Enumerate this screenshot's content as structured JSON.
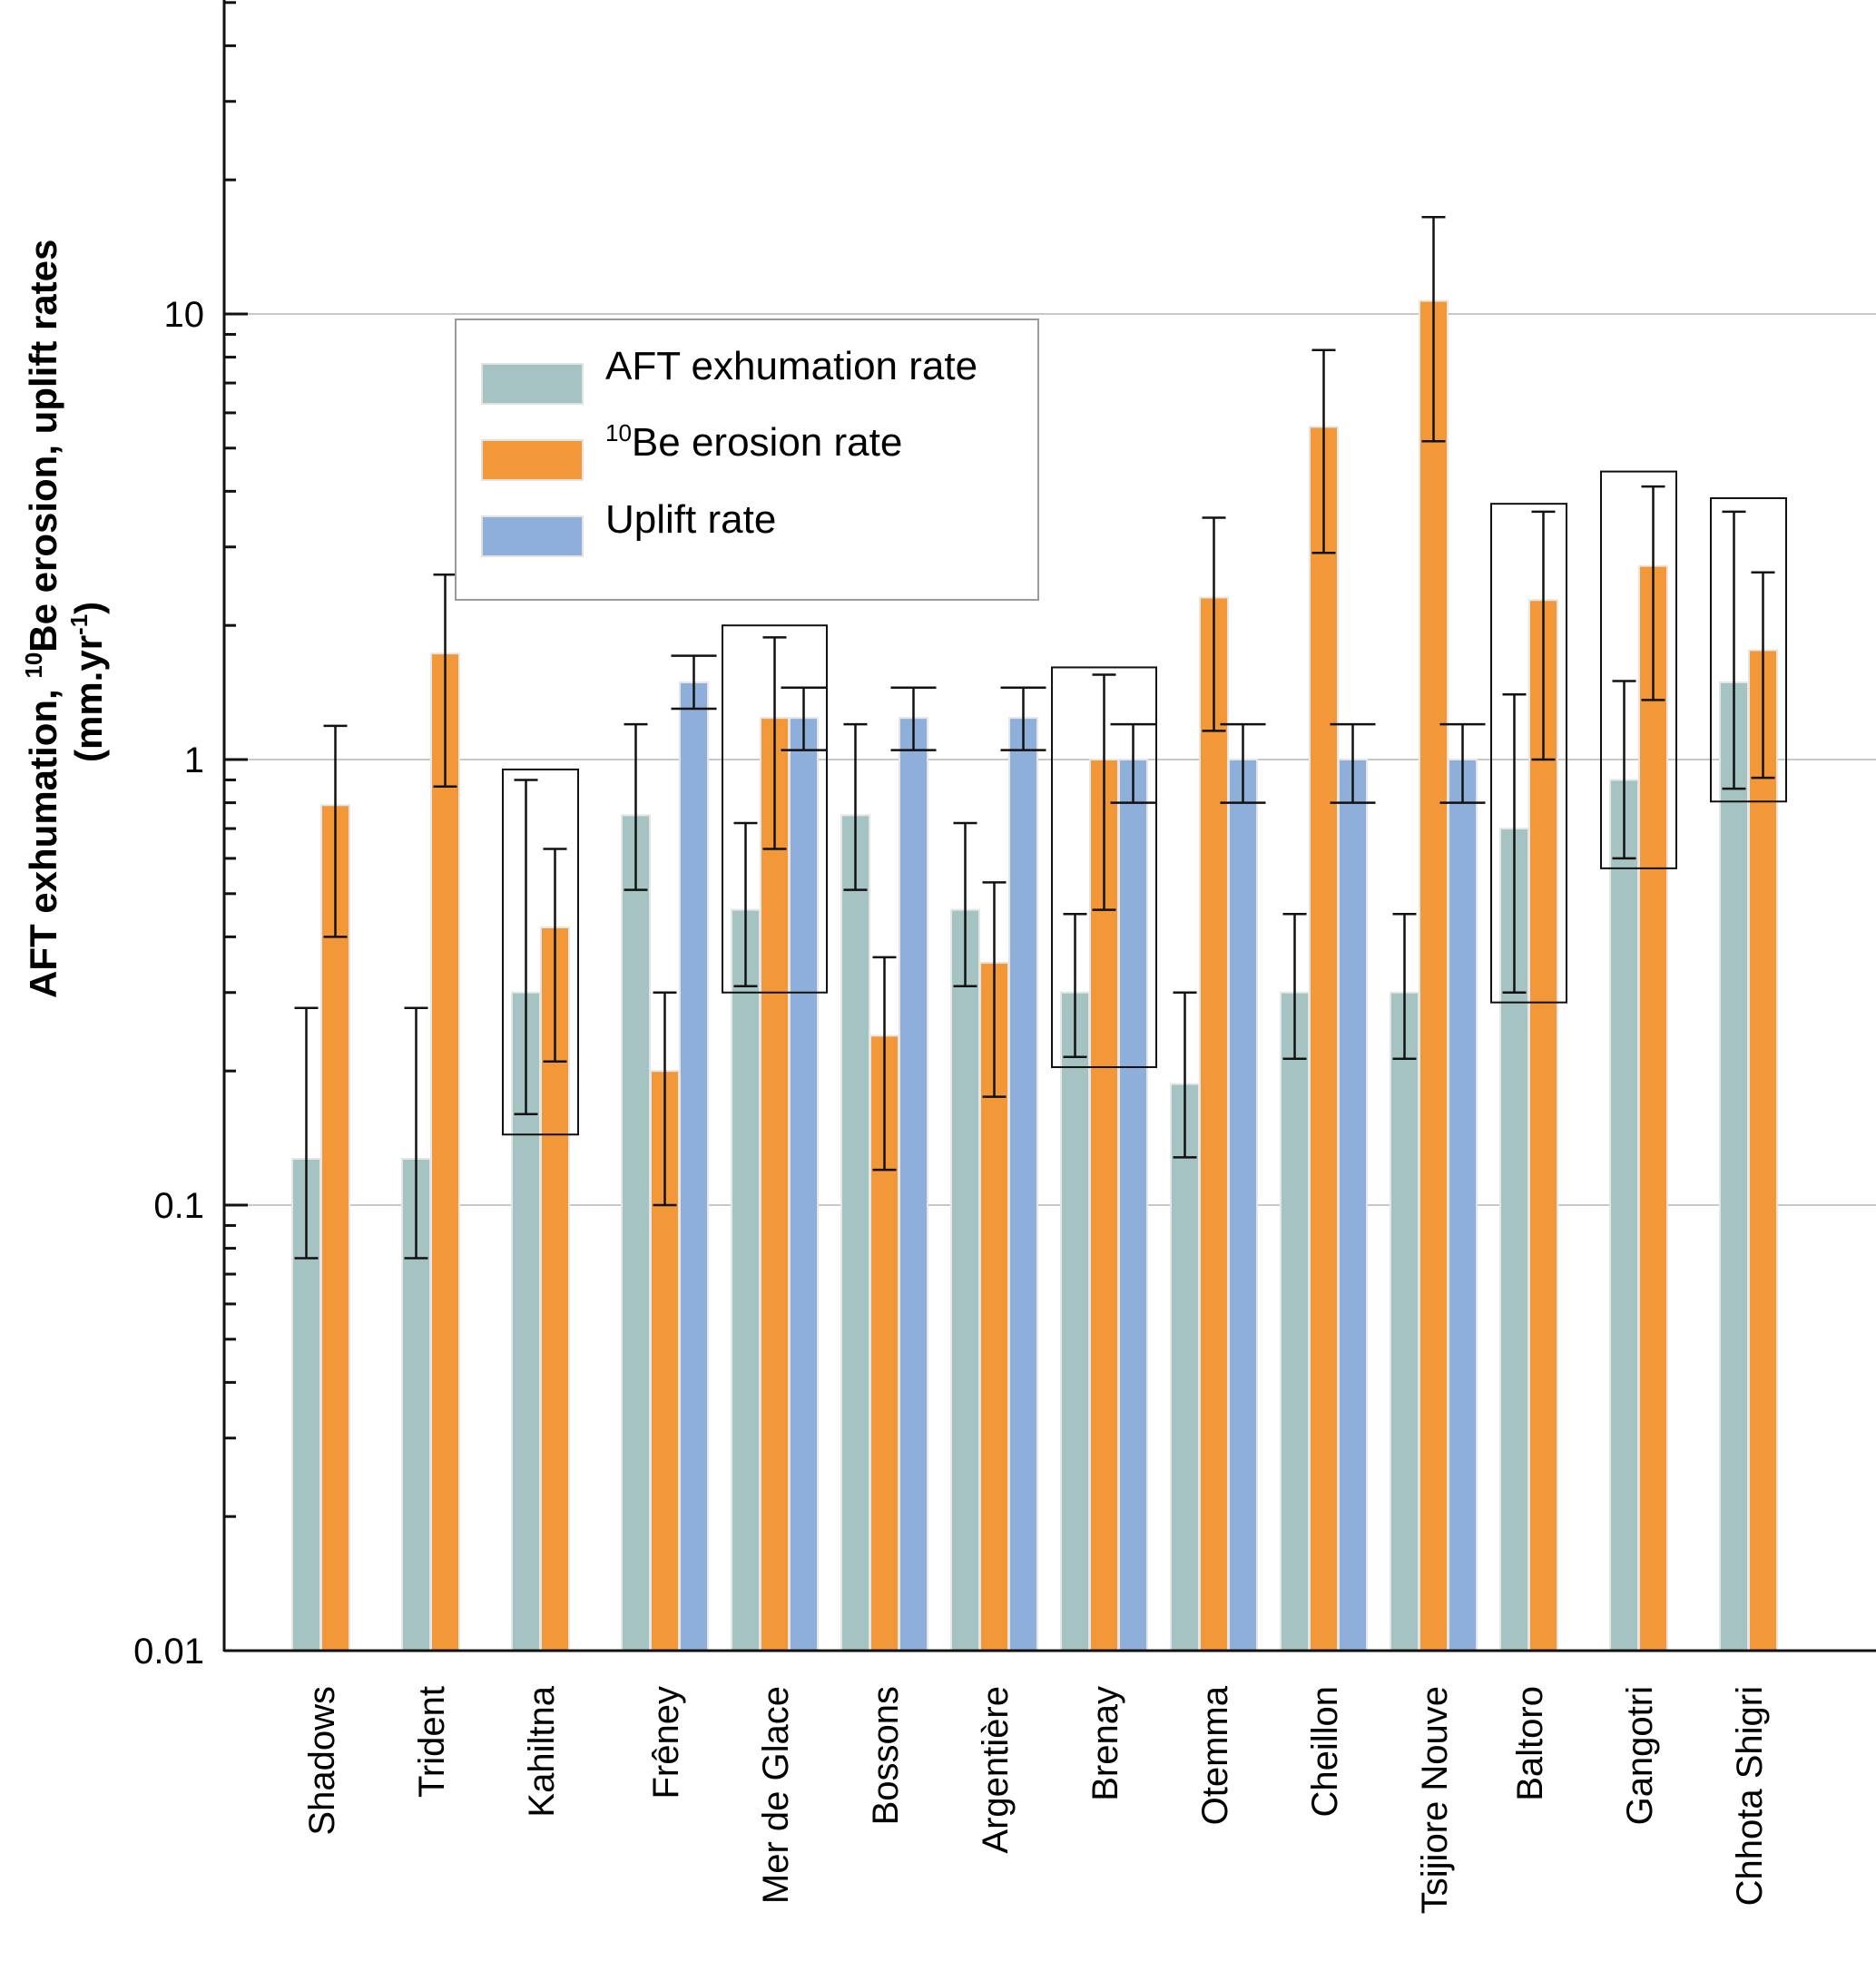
{
  "chart_data": {
    "type": "bar",
    "title": "",
    "xlabel": "",
    "ylabel": {
      "line1_part1": "AFT exhumation, ",
      "line1_sup": "10",
      "line1_part2": "Be erosion, uplift rates",
      "line2_part1": "(mm.yr",
      "line2_sup": "-1",
      "line2_part2": ")"
    },
    "yscale": "log",
    "ylim": [
      0.01,
      50
    ],
    "ytick_labels": [
      "0.01",
      "0.1",
      "1",
      "10"
    ],
    "yticks": [
      0.01,
      0.1,
      1,
      10
    ],
    "gridlines": [
      0.1,
      1,
      10
    ],
    "grid": "horizontal-major",
    "legend_position": "upper-left",
    "categories": [
      "Shadows",
      "Trident",
      "Kahiltna",
      "Frêney",
      "Mer de Glace",
      "Bossons",
      "Argentière",
      "Brenay",
      "Otemma",
      "Cheillon",
      "Tsijiore Nouve",
      "Baltoro",
      "Gangotri",
      "Chhota Shigri"
    ],
    "series": [
      {
        "name": "AFT exhumation rate",
        "legend_sup": "",
        "legend_text": "AFT exhumation rate",
        "color": "#a5c3c2",
        "values": [
          0.127,
          0.127,
          0.3,
          0.75,
          0.46,
          0.75,
          0.46,
          0.3,
          0.187,
          0.3,
          0.3,
          0.7,
          0.9,
          1.49
        ],
        "err_low": [
          0.076,
          0.076,
          0.16,
          0.51,
          0.31,
          0.51,
          0.31,
          0.215,
          0.128,
          0.213,
          0.213,
          0.3,
          0.6,
          0.86
        ],
        "err_high": [
          0.277,
          0.277,
          0.9,
          1.2,
          0.72,
          1.2,
          0.72,
          0.45,
          0.3,
          0.45,
          0.45,
          1.4,
          1.5,
          3.6
        ]
      },
      {
        "name": "10Be erosion rate",
        "legend_sup": "10",
        "legend_text": "Be  erosion  rate",
        "color": "#f39838",
        "values": [
          0.79,
          1.73,
          0.42,
          0.2,
          1.24,
          0.24,
          0.35,
          1.0,
          2.31,
          5.58,
          10.7,
          2.28,
          2.72,
          1.76
        ],
        "err_low": [
          0.4,
          0.87,
          0.21,
          0.1,
          0.63,
          0.12,
          0.175,
          0.46,
          1.16,
          2.91,
          5.18,
          1.0,
          1.36,
          0.91
        ],
        "err_high": [
          1.19,
          2.6,
          0.63,
          0.3,
          1.88,
          0.36,
          0.53,
          1.55,
          3.49,
          8.3,
          16.5,
          3.6,
          4.1,
          2.63
        ]
      },
      {
        "name": "Uplift rate",
        "legend_sup": "",
        "legend_text": "Uplift rate",
        "color": "#8eafda",
        "values": [
          null,
          null,
          null,
          1.49,
          1.24,
          1.24,
          1.24,
          1.0,
          1.0,
          1.0,
          1.0,
          null,
          null,
          null
        ],
        "err_low": [
          null,
          null,
          null,
          1.3,
          1.05,
          1.05,
          1.05,
          0.8,
          0.8,
          0.8,
          0.8,
          null,
          null,
          null
        ],
        "err_high": [
          null,
          null,
          null,
          1.71,
          1.45,
          1.45,
          1.45,
          1.2,
          1.2,
          1.2,
          1.2,
          null,
          null,
          null
        ]
      }
    ],
    "highlight_boxes": [
      {
        "category": "Kahiltna",
        "series": [
          0,
          1
        ],
        "y_range": [
          0.144,
          0.95
        ]
      },
      {
        "category": "Mer de Glace",
        "series": [
          0,
          1,
          2
        ],
        "y_range": [
          0.3,
          2.0
        ]
      },
      {
        "category": "Brenay",
        "series": [
          0,
          1,
          2
        ],
        "y_range": [
          0.204,
          1.61
        ]
      },
      {
        "category": "Baltoro",
        "series": [
          0,
          1
        ],
        "y_range": [
          0.285,
          3.75
        ]
      },
      {
        "category": "Gangotri",
        "series": [
          0,
          1
        ],
        "y_range": [
          0.57,
          4.43
        ]
      },
      {
        "category": "Chhota Shigri",
        "series": [
          0,
          1
        ],
        "y_range": [
          0.805,
          3.86
        ]
      }
    ]
  }
}
